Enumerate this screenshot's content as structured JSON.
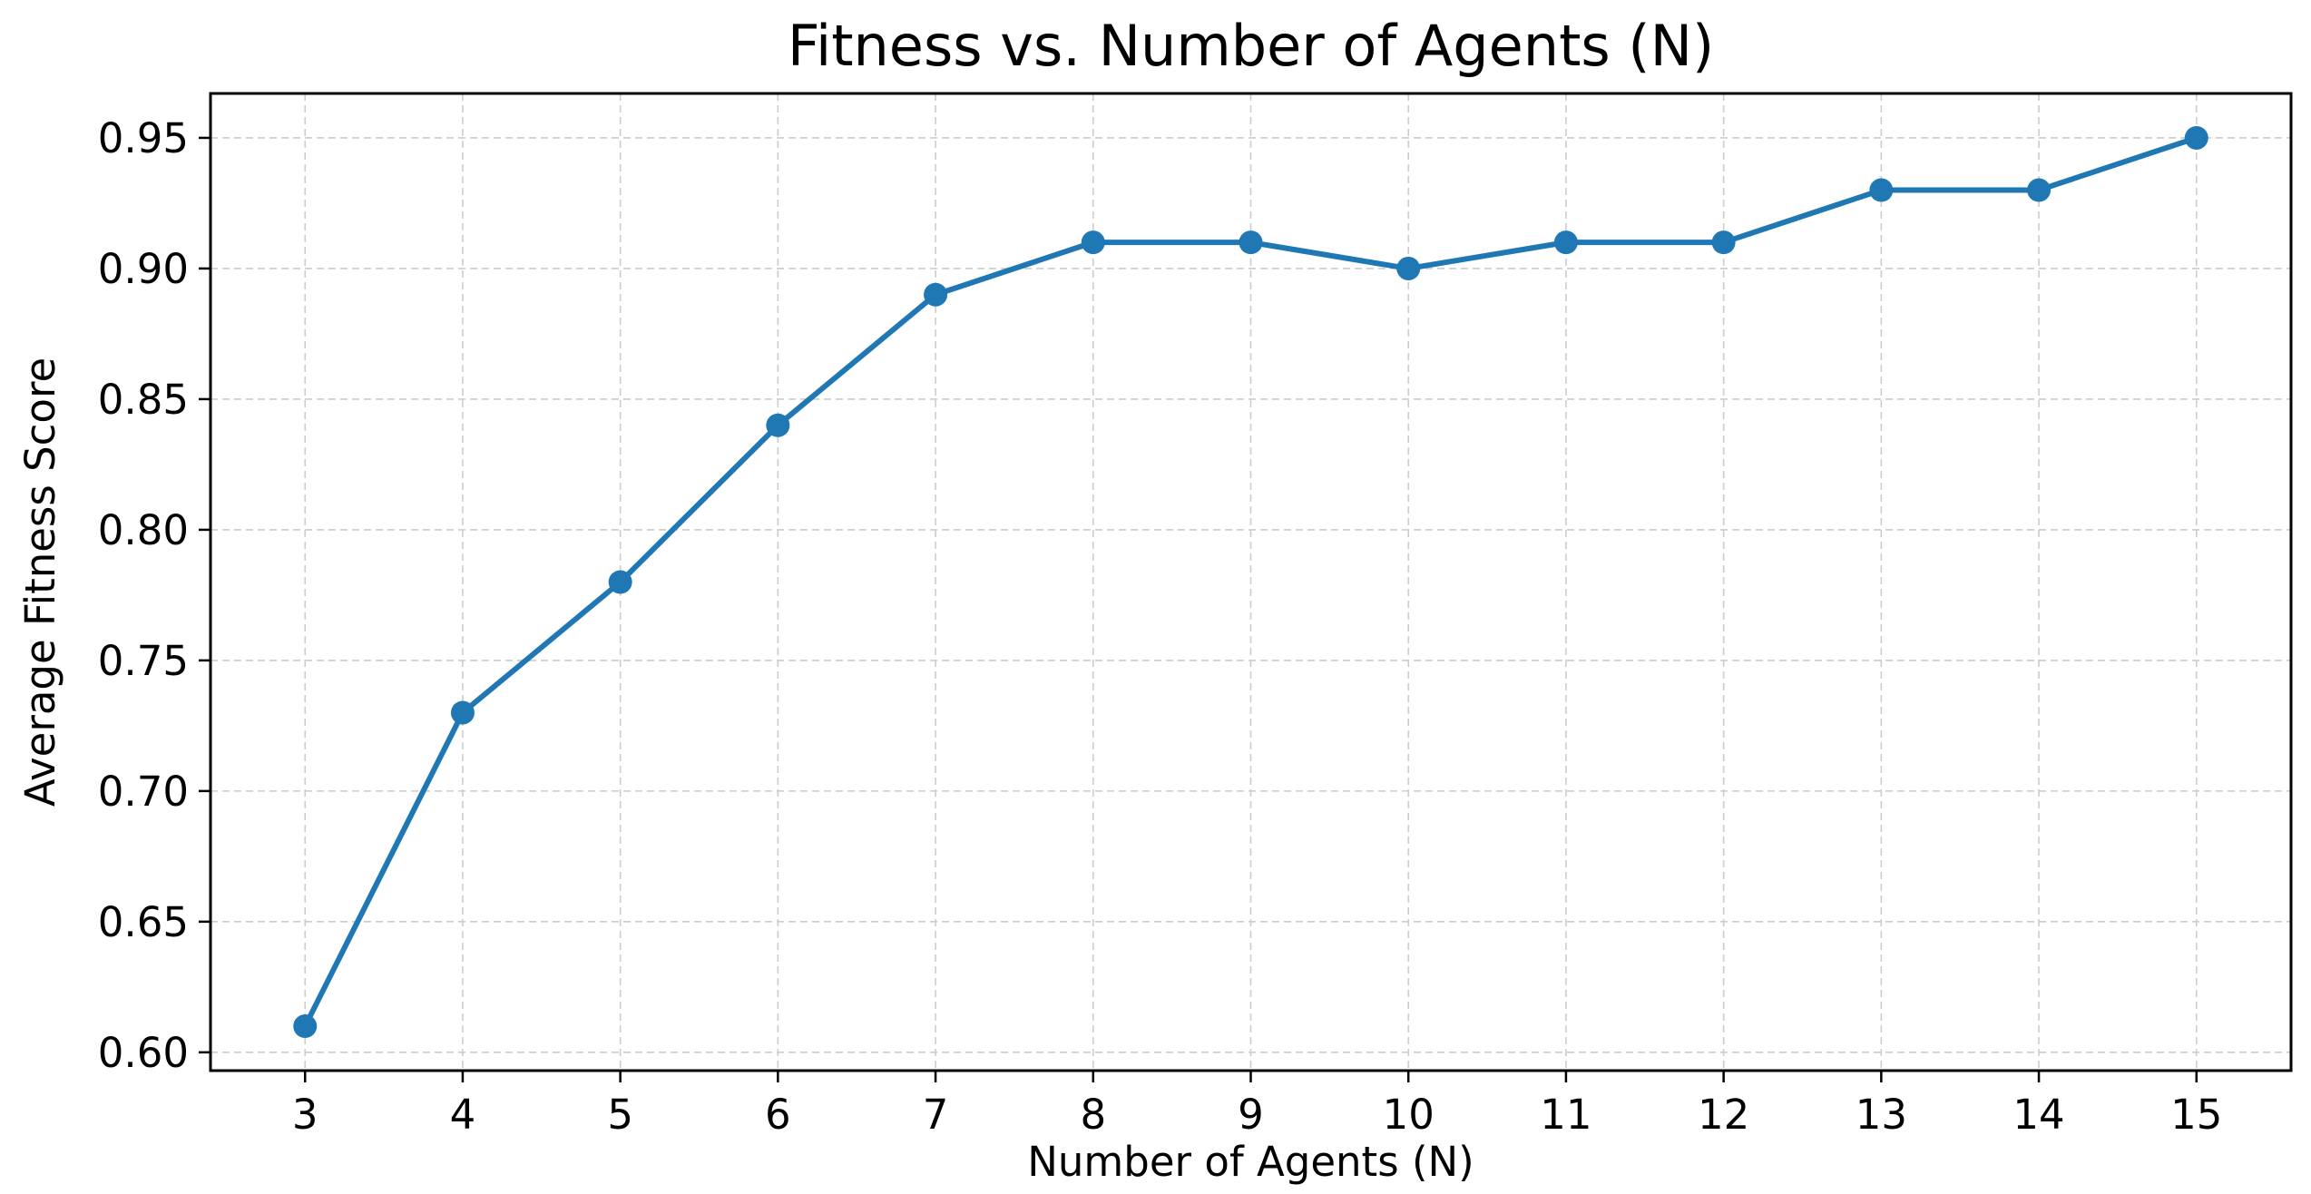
{
  "chart_data": {
    "type": "line",
    "title": "Fitness vs. Number of Agents (N)",
    "xlabel": "Number of Agents (N)",
    "ylabel": "Average Fitness Score",
    "x": [
      3,
      4,
      5,
      6,
      7,
      8,
      9,
      10,
      11,
      12,
      13,
      14,
      15
    ],
    "series": [
      {
        "values": [
          0.61,
          0.73,
          0.78,
          0.84,
          0.89,
          0.91,
          0.91,
          0.9,
          0.91,
          0.91,
          0.93,
          0.93,
          0.95
        ],
        "color": "#1f77b4",
        "marker": "circle"
      }
    ],
    "xticks": [
      "3",
      "4",
      "5",
      "6",
      "7",
      "8",
      "9",
      "10",
      "11",
      "12",
      "13",
      "14",
      "15"
    ],
    "yticks": [
      "0.60",
      "0.65",
      "0.70",
      "0.75",
      "0.80",
      "0.85",
      "0.90",
      "0.95"
    ],
    "xlim": [
      2.4,
      15.6
    ],
    "ylim": [
      0.593,
      0.967
    ],
    "grid": true,
    "legend": "none"
  }
}
